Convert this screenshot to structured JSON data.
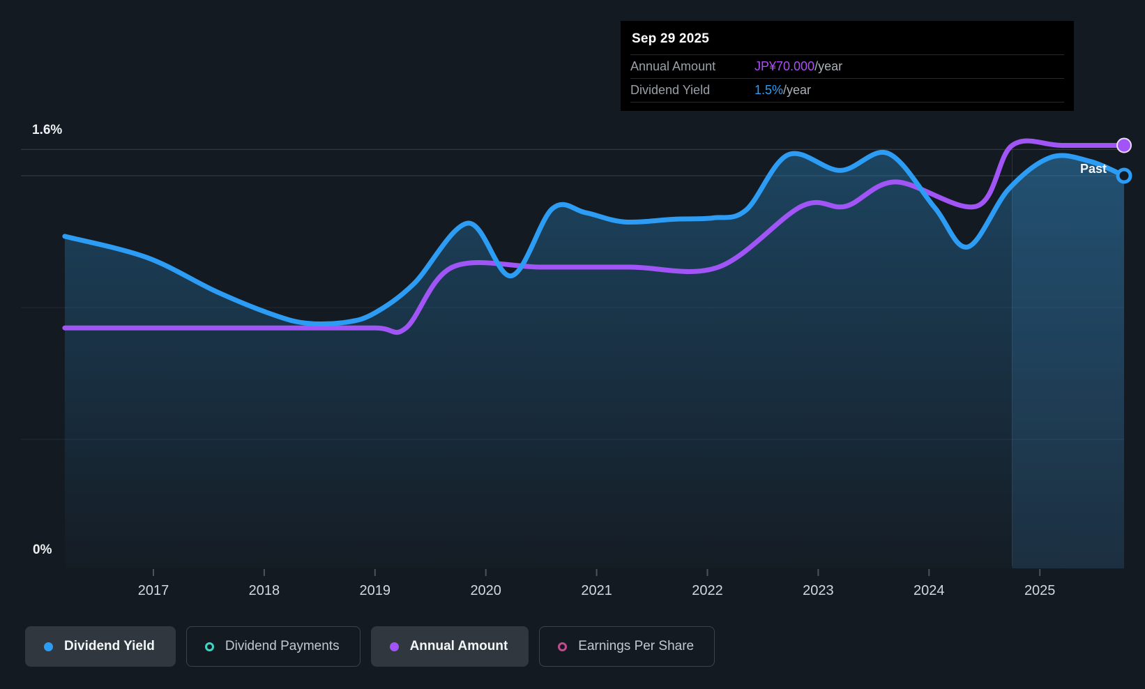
{
  "tooltip": {
    "date": "Sep 29 2025",
    "rows": [
      {
        "label": "Annual Amount",
        "value": "JP¥70.000",
        "suffix": "/year",
        "color": "#ac4ef5"
      },
      {
        "label": "Dividend Yield",
        "value": "1.5%",
        "suffix": "/year",
        "color": "#2d9cf4"
      }
    ]
  },
  "past_label": "Past",
  "legend": {
    "items": [
      {
        "label": "Dividend Yield",
        "marker": "dot",
        "color": "#2d9cf4",
        "active": true
      },
      {
        "label": "Dividend Payments",
        "marker": "ring",
        "color": "#3fd5c1",
        "active": false
      },
      {
        "label": "Annual Amount",
        "marker": "dot",
        "color": "#a155f6",
        "active": true
      },
      {
        "label": "Earnings Per Share",
        "marker": "ring",
        "color": "#c14b8e",
        "active": false
      }
    ]
  },
  "chart_data": {
    "type": "area",
    "title": "Dividend yield and payments history up to Sep 29 2025",
    "x_axis_years": [
      "2017",
      "2018",
      "2019",
      "2020",
      "2021",
      "2022",
      "2023",
      "2024",
      "2025"
    ],
    "x_range": [
      2016.2,
      2025.76
    ],
    "y_axis": {
      "unit": "%",
      "ylim": [
        0,
        1.7
      ],
      "labels": [
        {
          "value": 1.6,
          "text": "1.6%"
        },
        {
          "value": 0,
          "text": "0%"
        }
      ],
      "gridlines": [
        1.6,
        1.5,
        1.0,
        0.5
      ],
      "grid_strong_color": "#39414c",
      "grid_faint_color": "#232a33"
    },
    "past_band_start": 2024.75,
    "fill_base_color": "#2980b9",
    "series": [
      {
        "id": "dividend_yield",
        "name": "Dividend Yield",
        "color": "#2d9cf4",
        "unit": "percent_per_year",
        "current_value": "1.5%/year",
        "end_marker": "ring",
        "points": [
          [
            2016.2,
            1.27
          ],
          [
            2016.94,
            1.19
          ],
          [
            2017.57,
            1.06
          ],
          [
            2018.1,
            0.97
          ],
          [
            2018.4,
            0.94
          ],
          [
            2018.75,
            0.945
          ],
          [
            2019.0,
            0.98
          ],
          [
            2019.35,
            1.09
          ],
          [
            2019.84,
            1.32
          ],
          [
            2020.23,
            1.12
          ],
          [
            2020.6,
            1.375
          ],
          [
            2020.9,
            1.36
          ],
          [
            2021.25,
            1.325
          ],
          [
            2021.7,
            1.335
          ],
          [
            2022.05,
            1.34
          ],
          [
            2022.35,
            1.37
          ],
          [
            2022.73,
            1.58
          ],
          [
            2023.2,
            1.52
          ],
          [
            2023.63,
            1.585
          ],
          [
            2024.05,
            1.38
          ],
          [
            2024.35,
            1.23
          ],
          [
            2024.72,
            1.45
          ],
          [
            2025.1,
            1.57
          ],
          [
            2025.45,
            1.555
          ],
          [
            2025.76,
            1.5
          ]
        ]
      },
      {
        "id": "annual_amount",
        "name": "Annual Amount",
        "color": "#a155f6",
        "unit": "jpy_per_year",
        "current_value": "JP¥70.000/year",
        "end_marker": "dot",
        "plot_anchor": {
          "jpy": 70,
          "pct": 1.615
        },
        "points": [
          [
            2016.2,
            40
          ],
          [
            2017.2,
            40
          ],
          [
            2018.2,
            40
          ],
          [
            2019.0,
            40
          ],
          [
            2019.28,
            40
          ],
          [
            2019.7,
            50
          ],
          [
            2020.5,
            50
          ],
          [
            2021.3,
            50
          ],
          [
            2022.1,
            50
          ],
          [
            2022.85,
            60
          ],
          [
            2023.25,
            60
          ],
          [
            2023.7,
            64
          ],
          [
            2024.43,
            60
          ],
          [
            2024.75,
            70
          ],
          [
            2025.2,
            70
          ],
          [
            2025.76,
            70
          ]
        ]
      }
    ]
  }
}
